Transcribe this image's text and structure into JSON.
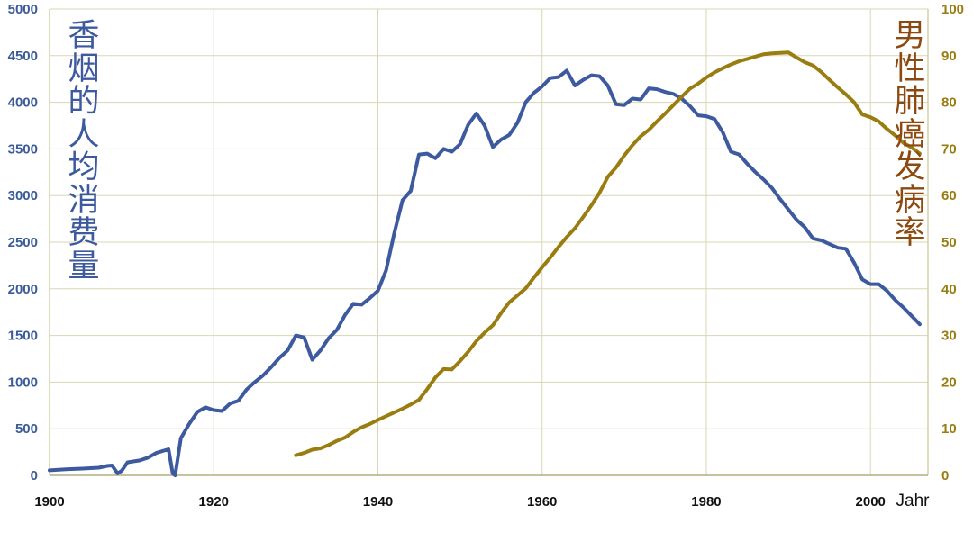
{
  "chart_data": {
    "type": "line",
    "xlabel": "Jahr",
    "ylabel_left": "香烟的人均消费量",
    "ylabel_right": "男性肺癌发病率",
    "xlim": [
      1900,
      2007
    ],
    "x_ticks": [
      1900,
      1920,
      1940,
      1960,
      1980,
      2000
    ],
    "ylim_left": [
      0,
      5000
    ],
    "y_ticks_left": [
      0,
      500,
      1000,
      1500,
      2000,
      2500,
      3000,
      3500,
      4000,
      4500,
      5000
    ],
    "ylim_right": [
      0,
      100
    ],
    "y_ticks_right": [
      0,
      10,
      20,
      30,
      40,
      50,
      60,
      70,
      80,
      90,
      100
    ],
    "grid": true,
    "colors": {
      "left_series": "#3d5a9e",
      "right_series": "#9a7d10",
      "right_label": "#8c4a10",
      "grid": "#d9d6b3"
    },
    "series": [
      {
        "axis": "left",
        "points": [
          [
            1900,
            54
          ],
          [
            1902,
            65
          ],
          [
            1904,
            72
          ],
          [
            1906,
            82
          ],
          [
            1907,
            101
          ],
          [
            1907.6,
            106
          ],
          [
            1908.3,
            20
          ],
          [
            1908.8,
            50
          ],
          [
            1909.5,
            140
          ],
          [
            1911,
            160
          ],
          [
            1912,
            190
          ],
          [
            1913,
            240
          ],
          [
            1914.5,
            280
          ],
          [
            1915,
            20
          ],
          [
            1915.3,
            0
          ],
          [
            1916,
            400
          ],
          [
            1917,
            550
          ],
          [
            1918,
            680
          ],
          [
            1919,
            730
          ],
          [
            1920,
            700
          ],
          [
            1921,
            690
          ],
          [
            1922,
            770
          ],
          [
            1923,
            800
          ],
          [
            1924,
            920
          ],
          [
            1925,
            1000
          ],
          [
            1926,
            1070
          ],
          [
            1927,
            1160
          ],
          [
            1928,
            1260
          ],
          [
            1929,
            1340
          ],
          [
            1930,
            1500
          ],
          [
            1931,
            1480
          ],
          [
            1932,
            1240
          ],
          [
            1933,
            1340
          ],
          [
            1934,
            1470
          ],
          [
            1935,
            1560
          ],
          [
            1936,
            1720
          ],
          [
            1937,
            1840
          ],
          [
            1938,
            1830
          ],
          [
            1939,
            1900
          ],
          [
            1940,
            1980
          ],
          [
            1941,
            2200
          ],
          [
            1942,
            2600
          ],
          [
            1943,
            2950
          ],
          [
            1944,
            3050
          ],
          [
            1945,
            3440
          ],
          [
            1946,
            3450
          ],
          [
            1947,
            3400
          ],
          [
            1948,
            3500
          ],
          [
            1949,
            3470
          ],
          [
            1950,
            3550
          ],
          [
            1951,
            3760
          ],
          [
            1952,
            3880
          ],
          [
            1953,
            3750
          ],
          [
            1954,
            3520
          ],
          [
            1955,
            3600
          ],
          [
            1956,
            3650
          ],
          [
            1957,
            3780
          ],
          [
            1958,
            4000
          ],
          [
            1959,
            4100
          ],
          [
            1960,
            4170
          ],
          [
            1961,
            4260
          ],
          [
            1962,
            4270
          ],
          [
            1963,
            4340
          ],
          [
            1964,
            4180
          ],
          [
            1965,
            4240
          ],
          [
            1966,
            4290
          ],
          [
            1967,
            4280
          ],
          [
            1968,
            4180
          ],
          [
            1969,
            3980
          ],
          [
            1970,
            3970
          ],
          [
            1971,
            4040
          ],
          [
            1972,
            4030
          ],
          [
            1973,
            4150
          ],
          [
            1974,
            4140
          ],
          [
            1975,
            4110
          ],
          [
            1976,
            4090
          ],
          [
            1977,
            4040
          ],
          [
            1978,
            3960
          ],
          [
            1979,
            3860
          ],
          [
            1980,
            3850
          ],
          [
            1981,
            3820
          ],
          [
            1982,
            3680
          ],
          [
            1983,
            3470
          ],
          [
            1984,
            3440
          ],
          [
            1985,
            3340
          ],
          [
            1986,
            3250
          ],
          [
            1987,
            3170
          ],
          [
            1988,
            3080
          ],
          [
            1989,
            2960
          ],
          [
            1990,
            2850
          ],
          [
            1991,
            2740
          ],
          [
            1992,
            2660
          ],
          [
            1993,
            2540
          ],
          [
            1994,
            2520
          ],
          [
            1995,
            2480
          ],
          [
            1996,
            2440
          ],
          [
            1997,
            2430
          ],
          [
            1998,
            2280
          ],
          [
            1999,
            2100
          ],
          [
            2000,
            2050
          ],
          [
            2001,
            2050
          ],
          [
            2002,
            1980
          ],
          [
            2003,
            1880
          ],
          [
            2004,
            1800
          ],
          [
            2005,
            1710
          ],
          [
            2006,
            1620
          ]
        ]
      },
      {
        "axis": "right",
        "points": [
          [
            1930,
            4.3
          ],
          [
            1931,
            4.8
          ],
          [
            1932,
            5.5
          ],
          [
            1933,
            5.8
          ],
          [
            1934,
            6.5
          ],
          [
            1935,
            7.4
          ],
          [
            1936,
            8.1
          ],
          [
            1937,
            9.3
          ],
          [
            1938,
            10.3
          ],
          [
            1939,
            11.0
          ],
          [
            1940,
            11.9
          ],
          [
            1941,
            12.7
          ],
          [
            1942,
            13.5
          ],
          [
            1943,
            14.3
          ],
          [
            1944,
            15.2
          ],
          [
            1945,
            16.2
          ],
          [
            1946,
            18.5
          ],
          [
            1947,
            21.0
          ],
          [
            1948,
            22.8
          ],
          [
            1949,
            22.7
          ],
          [
            1950,
            24.5
          ],
          [
            1951,
            26.5
          ],
          [
            1952,
            28.8
          ],
          [
            1953,
            30.6
          ],
          [
            1954,
            32.2
          ],
          [
            1955,
            34.8
          ],
          [
            1956,
            37.1
          ],
          [
            1957,
            38.6
          ],
          [
            1958,
            40.1
          ],
          [
            1959,
            42.4
          ],
          [
            1960,
            44.6
          ],
          [
            1961,
            46.7
          ],
          [
            1962,
            49.0
          ],
          [
            1963,
            51.1
          ],
          [
            1964,
            53.0
          ],
          [
            1965,
            55.4
          ],
          [
            1966,
            57.9
          ],
          [
            1967,
            60.6
          ],
          [
            1968,
            64.0
          ],
          [
            1969,
            66.0
          ],
          [
            1970,
            68.6
          ],
          [
            1971,
            70.8
          ],
          [
            1972,
            72.7
          ],
          [
            1973,
            74.1
          ],
          [
            1974,
            75.9
          ],
          [
            1975,
            77.6
          ],
          [
            1976,
            79.4
          ],
          [
            1977,
            81.2
          ],
          [
            1978,
            82.9
          ],
          [
            1979,
            84.0
          ],
          [
            1980,
            85.3
          ],
          [
            1981,
            86.4
          ],
          [
            1982,
            87.3
          ],
          [
            1983,
            88.1
          ],
          [
            1984,
            88.8
          ],
          [
            1985,
            89.3
          ],
          [
            1986,
            89.8
          ],
          [
            1987,
            90.3
          ],
          [
            1988,
            90.5
          ],
          [
            1989,
            90.6
          ],
          [
            1990,
            90.7
          ],
          [
            1991,
            89.6
          ],
          [
            1992,
            88.6
          ],
          [
            1993,
            87.9
          ],
          [
            1994,
            86.5
          ],
          [
            1995,
            84.8
          ],
          [
            1996,
            83.2
          ],
          [
            1997,
            81.7
          ],
          [
            1998,
            80.0
          ],
          [
            1999,
            77.4
          ],
          [
            2000,
            76.8
          ],
          [
            2001,
            75.9
          ],
          [
            2002,
            74.3
          ],
          [
            2003,
            72.9
          ],
          [
            2004,
            71.3
          ],
          [
            2005,
            70.3
          ],
          [
            2006,
            69.0
          ]
        ]
      }
    ]
  }
}
